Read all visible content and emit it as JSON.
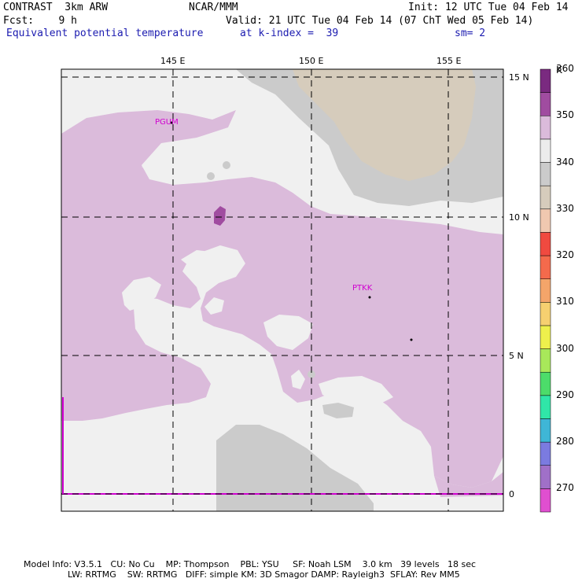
{
  "header": {
    "model": "CONTRAST  3km ARW",
    "org": "NCAR/MMM",
    "init": "Init: 12 UTC Tue 04 Feb 14",
    "fcst": "Fcst:    9 h",
    "valid": "Valid: 21 UTC Tue 04 Feb 14 (07 ChT Wed 05 Feb 14)",
    "field": "Equivalent potential temperature",
    "level": "at k-index =  39",
    "smooth": "sm= 2"
  },
  "map": {
    "lon_labels": [
      "145 E",
      "150 E",
      "155 E"
    ],
    "lat_labels": [
      "15 N",
      "10 N",
      "5 N",
      "0"
    ],
    "stations": [
      {
        "id": "PGUM"
      },
      {
        "id": "PTKK"
      }
    ]
  },
  "colorbar": {
    "unit": "K",
    "levels": [
      "270",
      "280",
      "290",
      "300",
      "310",
      "320",
      "330",
      "340",
      "350",
      "360"
    ],
    "colors": [
      "#e04fd0",
      "#a070c8",
      "#7b7be0",
      "#3fb6d6",
      "#30e6a8",
      "#4cdc6a",
      "#a8e85a",
      "#eef04c",
      "#f6d070",
      "#f4a56a",
      "#f46a4c",
      "#f04a40",
      "#f0c8b0",
      "#d6ccbc",
      "#cbcbcb",
      "#ececec",
      "#dbbbdb",
      "#a04ca0",
      "#7a2a80"
    ]
  },
  "footer": {
    "line1": "Model Info: V3.5.1   CU: No Cu    MP: Thompson    PBL: YSU     SF: Noah LSM    3.0 km   39 levels   18 sec",
    "line2": "                LW: RRTMG    SW: RRTMG   DIFF: simple KM: 3D Smagor DAMP: Rayleigh3  SFLAY: Rev MM5"
  }
}
